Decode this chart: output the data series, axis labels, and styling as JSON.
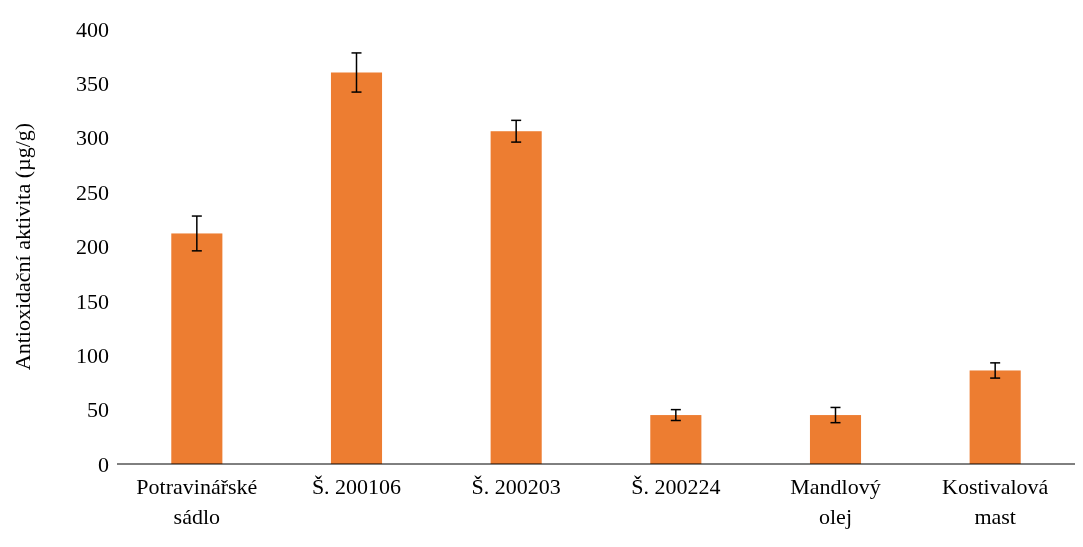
{
  "chart_data": {
    "type": "bar",
    "ylabel": "Antioxidační aktivita (µg/g)",
    "categories": [
      "Potravinářské sádlo",
      "Š. 200106",
      "Š. 200203",
      "Š. 200224",
      "Mandlový olej",
      "Kostivalová mast"
    ],
    "values": [
      212,
      360,
      306,
      45,
      45,
      86
    ],
    "errors": [
      16,
      18,
      10,
      5,
      7,
      7
    ],
    "color": "#ed7d31",
    "ylim": [
      0,
      400
    ],
    "yticks": [
      0,
      50,
      100,
      150,
      200,
      250,
      300,
      350,
      400
    ],
    "grid": false
  }
}
